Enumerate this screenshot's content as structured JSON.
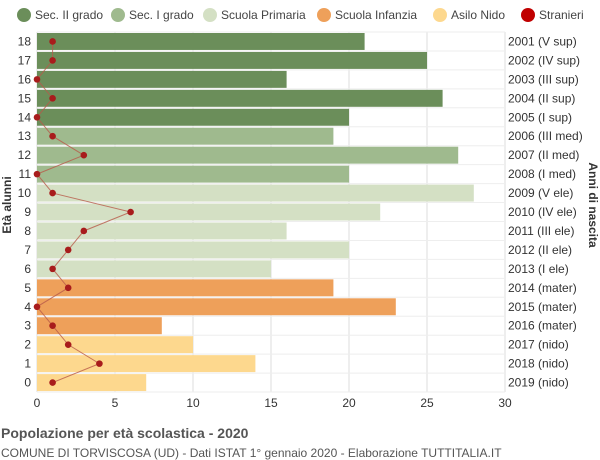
{
  "chart_data": {
    "type": "bar",
    "orientation": "horizontal",
    "title": "Popolazione per età scolastica - 2020",
    "subtitle": "COMUNE DI TORVISCOSA (UD) - Dati ISTAT 1° gennaio 2020 - Elaborazione TUTTITALIA.IT",
    "ylabel_left": "Età alunni",
    "ylabel_right": "Anni di nascita",
    "xlim": [
      0,
      30
    ],
    "x_ticks": [
      0,
      5,
      10,
      15,
      20,
      25,
      30
    ],
    "legend_placement": "top",
    "legend": [
      {
        "name": "Sec. II grado",
        "color": "#6b8e5a"
      },
      {
        "name": "Sec. I grado",
        "color": "#9fba8e"
      },
      {
        "name": "Scuola Primaria",
        "color": "#d4e0c4"
      },
      {
        "name": "Scuola Infanzia",
        "color": "#eea05a"
      },
      {
        "name": "Asilo Nido",
        "color": "#fdd88e"
      },
      {
        "name": "Stranieri",
        "color": "#c00000"
      }
    ],
    "rows": [
      {
        "age": "18",
        "birth": "2001 (V sup)",
        "value": 21,
        "stranieri": 1,
        "group": 0
      },
      {
        "age": "17",
        "birth": "2002 (IV sup)",
        "value": 25,
        "stranieri": 1,
        "group": 0
      },
      {
        "age": "16",
        "birth": "2003 (III sup)",
        "value": 16,
        "stranieri": 0,
        "group": 0
      },
      {
        "age": "15",
        "birth": "2004 (II sup)",
        "value": 26,
        "stranieri": 1,
        "group": 0
      },
      {
        "age": "14",
        "birth": "2005 (I sup)",
        "value": 20,
        "stranieri": 0,
        "group": 0
      },
      {
        "age": "13",
        "birth": "2006 (III med)",
        "value": 19,
        "stranieri": 1,
        "group": 1
      },
      {
        "age": "12",
        "birth": "2007 (II med)",
        "value": 27,
        "stranieri": 3,
        "group": 1
      },
      {
        "age": "11",
        "birth": "2008 (I med)",
        "value": 20,
        "stranieri": 0,
        "group": 1
      },
      {
        "age": "10",
        "birth": "2009 (V ele)",
        "value": 28,
        "stranieri": 1,
        "group": 2
      },
      {
        "age": "9",
        "birth": "2010 (IV ele)",
        "value": 22,
        "stranieri": 6,
        "group": 2
      },
      {
        "age": "8",
        "birth": "2011 (III ele)",
        "value": 16,
        "stranieri": 3,
        "group": 2
      },
      {
        "age": "7",
        "birth": "2012 (II ele)",
        "value": 20,
        "stranieri": 2,
        "group": 2
      },
      {
        "age": "6",
        "birth": "2013 (I ele)",
        "value": 15,
        "stranieri": 1,
        "group": 2
      },
      {
        "age": "5",
        "birth": "2014 (mater)",
        "value": 19,
        "stranieri": 2,
        "group": 3
      },
      {
        "age": "4",
        "birth": "2015 (mater)",
        "value": 23,
        "stranieri": 0,
        "group": 3
      },
      {
        "age": "3",
        "birth": "2016 (mater)",
        "value": 8,
        "stranieri": 1,
        "group": 3
      },
      {
        "age": "2",
        "birth": "2017 (nido)",
        "value": 10,
        "stranieri": 2,
        "group": 4
      },
      {
        "age": "1",
        "birth": "2018 (nido)",
        "value": 14,
        "stranieri": 4,
        "group": 4
      },
      {
        "age": "0",
        "birth": "2019 (nido)",
        "value": 7,
        "stranieri": 1,
        "group": 4
      }
    ],
    "grid": true
  }
}
